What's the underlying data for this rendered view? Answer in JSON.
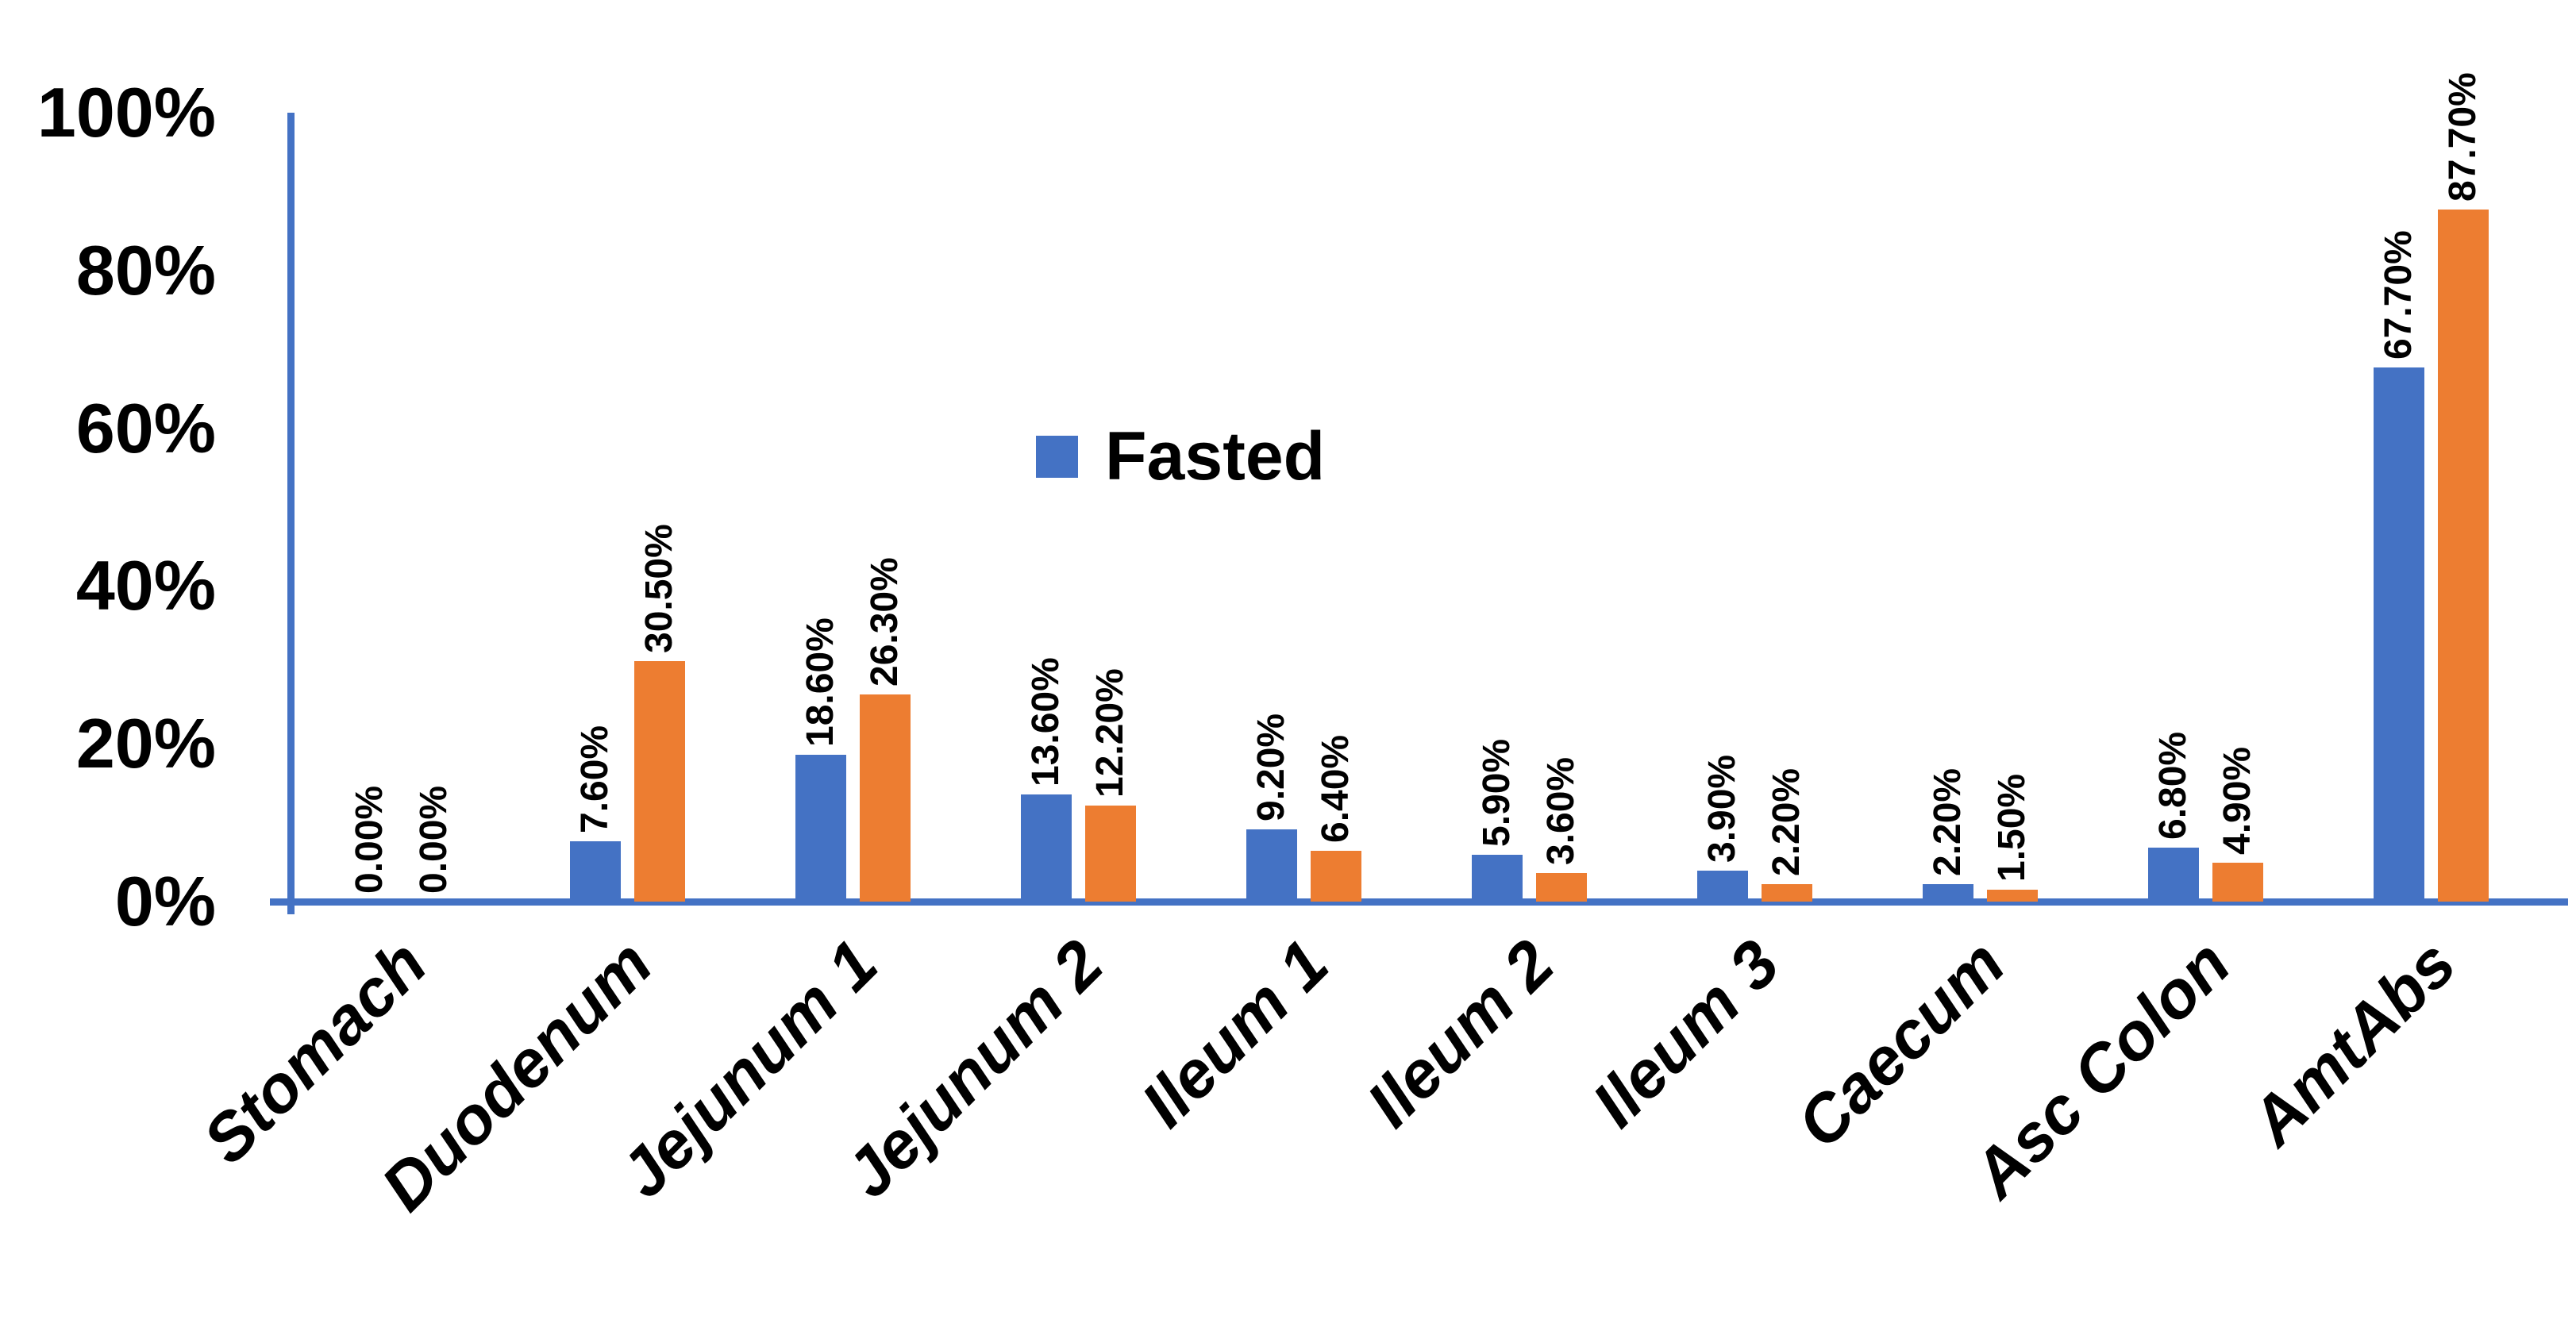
{
  "chart_data": {
    "type": "bar",
    "title": "",
    "categories": [
      "Stomach",
      "Duodenum",
      "Jejunum 1",
      "Jejunum 2",
      "Ileum 1",
      "Ileum 2",
      "Ileum 3",
      "Caecum",
      "Asc Colon",
      "AmtAbs"
    ],
    "series": [
      {
        "name": "Fasted",
        "color": "#4472C4",
        "values": [
          0,
          7.6,
          18.6,
          13.6,
          9.2,
          5.9,
          3.9,
          2.2,
          6.8,
          67.7
        ],
        "labels": [
          "0.00%",
          "7.60%",
          "18.60%",
          "13.60%",
          "9.20%",
          "5.90%",
          "3.90%",
          "2.20%",
          "6.80%",
          "67.70%"
        ]
      },
      {
        "name": "",
        "color": "#ED7D31",
        "values": [
          0,
          30.5,
          26.3,
          12.2,
          6.4,
          3.6,
          2.2,
          1.5,
          4.9,
          87.7
        ],
        "labels": [
          "0.00%",
          "30.50%",
          "26.30%",
          "12.20%",
          "6.40%",
          "3.60%",
          "2.20%",
          "1.50%",
          "4.90%",
          "87.70%"
        ]
      }
    ],
    "y_axis": {
      "min": 0,
      "max": 100,
      "ticks": [
        "0%",
        "20%",
        "40%",
        "60%",
        "80%",
        "100%"
      ]
    },
    "x_axis": {
      "label_rotation_deg": -45
    },
    "data_label_rotation_deg": -90,
    "grid": false,
    "axis_color": "#4472C4",
    "legend": {
      "position": "upper-center",
      "entries": [
        {
          "label": "Fasted",
          "color": "#4472C4"
        }
      ]
    }
  }
}
